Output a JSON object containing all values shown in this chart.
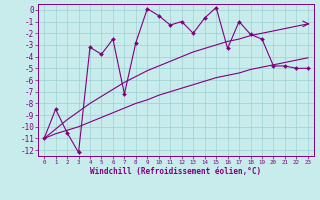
{
  "x_values": [
    0,
    1,
    2,
    3,
    4,
    5,
    6,
    7,
    8,
    9,
    10,
    11,
    12,
    13,
    14,
    15,
    16,
    17,
    18,
    19,
    20,
    21,
    22,
    23
  ],
  "main_y": [
    -11,
    -8.5,
    -10.5,
    -12.2,
    -3.2,
    -3.8,
    -2.5,
    -7.2,
    -2.8,
    0.1,
    -0.5,
    -1.3,
    -1.0,
    -2.0,
    -0.7,
    0.2,
    -3.3,
    -1.0,
    -2.1,
    -2.5,
    -4.8,
    -4.8,
    -5.0,
    -5.0
  ],
  "trend_upper_y": [
    -11.0,
    -10.2,
    -9.4,
    -8.7,
    -8.0,
    -7.4,
    -6.8,
    -6.2,
    -5.7,
    -5.2,
    -4.8,
    -4.4,
    -4.0,
    -3.6,
    -3.3,
    -3.0,
    -2.7,
    -2.5,
    -2.2,
    -2.0,
    -1.8,
    -1.6,
    -1.4,
    -1.2
  ],
  "trend_lower_y": [
    -11.0,
    -10.6,
    -10.3,
    -10.0,
    -9.6,
    -9.2,
    -8.8,
    -8.4,
    -8.0,
    -7.7,
    -7.3,
    -7.0,
    -6.7,
    -6.4,
    -6.1,
    -5.8,
    -5.6,
    -5.4,
    -5.1,
    -4.9,
    -4.7,
    -4.5,
    -4.3,
    -4.1
  ],
  "bg_color": "#c8ecec",
  "line_color": "#800080",
  "grid_color": "#9ecfcf",
  "xlabel": "Windchill (Refroidissement éolien,°C)",
  "xlim": [
    -0.5,
    23.5
  ],
  "ylim": [
    -12.5,
    0.5
  ],
  "xtick_labels": [
    "0",
    "1",
    "2",
    "3",
    "4",
    "5",
    "6",
    "7",
    "8",
    "9",
    "10",
    "11",
    "12",
    "13",
    "14",
    "15",
    "16",
    "17",
    "18",
    "19",
    "20",
    "21",
    "22",
    "23"
  ],
  "ytick_labels": [
    "0",
    "-1",
    "-2",
    "-3",
    "-4",
    "-5",
    "-6",
    "-7",
    "-8",
    "-9",
    "-10",
    "-11",
    "-12"
  ]
}
